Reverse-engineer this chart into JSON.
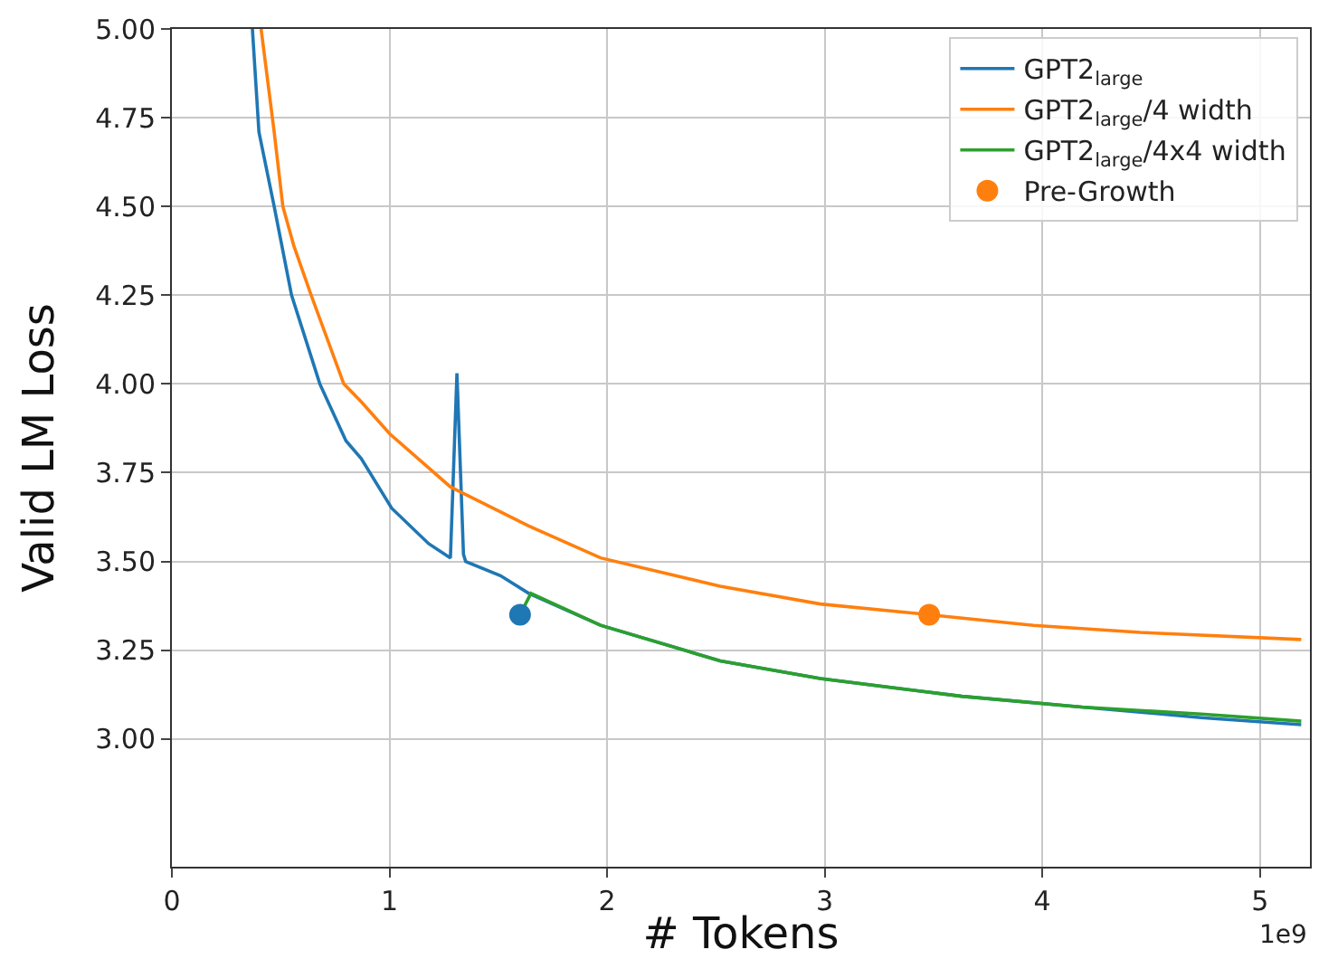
{
  "chart_data": {
    "type": "line",
    "xlabel": "# Tokens",
    "ylabel": "Valid LM Loss",
    "annotations": [
      "1e9"
    ],
    "xlim": [
      0,
      5.23
    ],
    "xticks": [
      0,
      1,
      2,
      3,
      4,
      5
    ],
    "ylim": [
      2.64,
      5.0
    ],
    "yticks": [
      {
        "value": 3.0,
        "label": "3.00"
      },
      {
        "value": 3.25,
        "label": "3.25"
      },
      {
        "value": 3.5,
        "label": "3.50"
      },
      {
        "value": 3.75,
        "label": "3.75"
      },
      {
        "value": 4.0,
        "label": "4.00"
      },
      {
        "value": 4.25,
        "label": "4.25"
      },
      {
        "value": 4.5,
        "label": "4.50"
      },
      {
        "value": 4.75,
        "label": "4.75"
      },
      {
        "value": 5.0,
        "label": "5.00"
      }
    ],
    "grid": true,
    "legend": "top right",
    "marker": "none",
    "line_style": "solid",
    "series": [
      {
        "name": "GPT2$_{large}$",
        "color": "#1f77b4",
        "x": [
          0.37,
          0.4,
          0.47,
          0.55,
          0.68,
          0.8,
          0.87,
          1.01,
          1.18,
          1.28,
          1.31,
          1.34,
          1.35,
          1.51,
          1.64,
          1.97,
          2.52,
          2.98,
          3.63,
          4.18,
          4.73,
          5.19
        ],
        "values": [
          5.0,
          4.71,
          4.5,
          4.25,
          4.0,
          3.84,
          3.79,
          3.65,
          3.55,
          3.51,
          4.03,
          3.52,
          3.5,
          3.46,
          3.41,
          3.32,
          3.22,
          3.17,
          3.12,
          3.09,
          3.06,
          3.04
        ]
      },
      {
        "name": "GPT2$_{large}$/4 width",
        "color": "#ff7f0e",
        "x": [
          0.41,
          0.47,
          0.51,
          0.56,
          0.64,
          0.79,
          0.87,
          1.0,
          1.28,
          1.64,
          1.97,
          2.52,
          2.98,
          3.48,
          3.96,
          4.45,
          5.19
        ],
        "values": [
          5.0,
          4.71,
          4.5,
          4.39,
          4.25,
          4.0,
          3.95,
          3.86,
          3.71,
          3.6,
          3.51,
          3.43,
          3.38,
          3.35,
          3.32,
          3.3,
          3.28
        ]
      },
      {
        "name": "GPT2$_{large}$/4x4 width",
        "color": "#2ca02c",
        "x": [
          1.6,
          1.65,
          1.97,
          2.52,
          2.98,
          3.63,
          4.18,
          4.73,
          5.19
        ],
        "values": [
          3.35,
          3.41,
          3.32,
          3.22,
          3.17,
          3.12,
          3.09,
          3.07,
          3.05
        ]
      },
      {
        "type": "scatter",
        "marker": "circle",
        "color": "#1f77b4",
        "x": [
          1.6
        ],
        "values": [
          3.35
        ]
      },
      {
        "name": "Pre-Growth",
        "type": "scatter",
        "marker": "circle",
        "color": "#ff7f0e",
        "x": [
          3.48
        ],
        "values": [
          3.35
        ]
      }
    ]
  }
}
